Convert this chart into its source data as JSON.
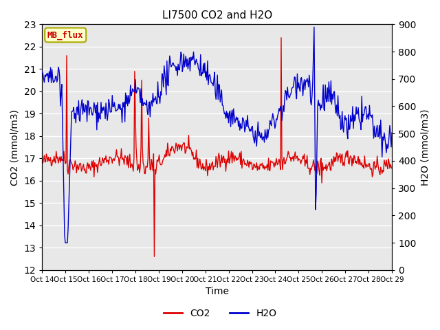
{
  "title": "LI7500 CO2 and H2O",
  "xlabel": "Time",
  "ylabel_left": "CO2 (mmol/m3)",
  "ylabel_right": "H2O (mmol/m3)",
  "annotation": "MB_flux",
  "annotation_color": "#cc0000",
  "annotation_bg": "#ffffcc",
  "annotation_border": "#aaaa00",
  "co2_color": "#dd0000",
  "h2o_color": "#0000cc",
  "ylim_left": [
    12.0,
    23.0
  ],
  "ylim_right": [
    0,
    900
  ],
  "yticks_left": [
    12.0,
    13.0,
    14.0,
    15.0,
    16.0,
    17.0,
    18.0,
    19.0,
    20.0,
    21.0,
    22.0,
    23.0
  ],
  "yticks_right": [
    0,
    100,
    200,
    300,
    400,
    500,
    600,
    700,
    800,
    900
  ],
  "xtick_labels": [
    "Oct 14",
    "Oct 15",
    "Oct 16",
    "Oct 17",
    "Oct 18",
    "Oct 19",
    "Oct 20",
    "Oct 21",
    "Oct 22",
    "Oct 23",
    "Oct 24",
    "Oct 25",
    "Oct 26",
    "Oct 27",
    "Oct 28",
    "Oct 29"
  ],
  "background_color": "#e8e8e8",
  "grid_color": "#ffffff",
  "linewidth": 1.0
}
